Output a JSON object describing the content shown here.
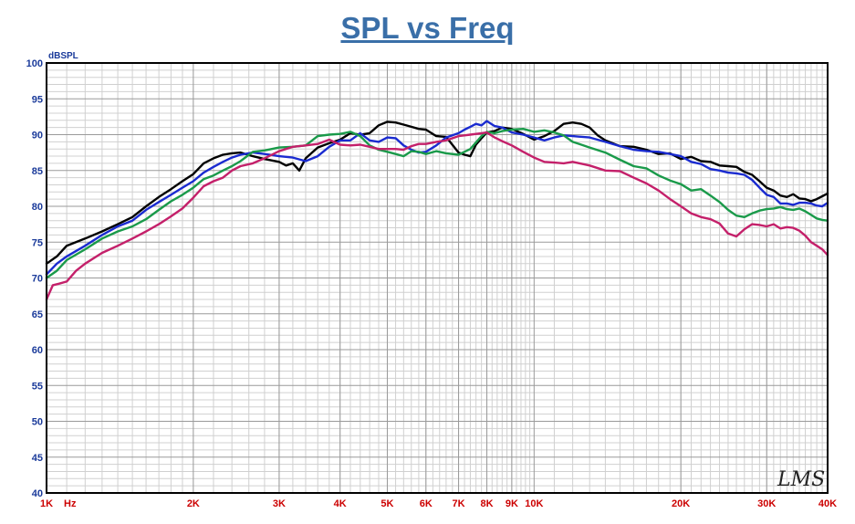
{
  "chart_data": {
    "type": "line",
    "title": "SPL vs Freq",
    "ylabel": "dBSPL",
    "xlabel_unit": "Hz",
    "x_scale": "log",
    "xlim": [
      1000,
      40000
    ],
    "ylim": [
      40,
      100
    ],
    "grid": true,
    "x_tick_labels": [
      {
        "value": 1000,
        "label": "1K"
      },
      {
        "value": 2000,
        "label": "2K"
      },
      {
        "value": 3000,
        "label": "3K"
      },
      {
        "value": 4000,
        "label": "4K"
      },
      {
        "value": 5000,
        "label": "5K"
      },
      {
        "value": 6000,
        "label": "6K"
      },
      {
        "value": 7000,
        "label": "7K"
      },
      {
        "value": 8000,
        "label": "8K"
      },
      {
        "value": 9000,
        "label": "9K"
      },
      {
        "value": 10000,
        "label": "10K"
      },
      {
        "value": 20000,
        "label": "20K"
      },
      {
        "value": 30000,
        "label": "30K"
      },
      {
        "value": 40000,
        "label": "40K"
      }
    ],
    "y_ticks": [
      40,
      45,
      50,
      55,
      60,
      65,
      70,
      75,
      80,
      85,
      90,
      95,
      100
    ],
    "watermark": "LMS",
    "colors": {
      "title": "#3a6fa8",
      "y_tick_labels": "#1a3a9a",
      "x_tick_labels": "#cc0000",
      "grid_major": "#9a9a9a",
      "grid_minor": "#d0d0d0",
      "frame": "#000000"
    },
    "series": [
      {
        "color": "#000000",
        "x": [
          1000,
          1050,
          1100,
          1200,
          1300,
          1400,
          1500,
          1600,
          1700,
          1800,
          1900,
          2000,
          2100,
          2200,
          2300,
          2400,
          2500,
          2650,
          2800,
          3000,
          3100,
          3200,
          3300,
          3400,
          3600,
          3800,
          4000,
          4200,
          4400,
          4600,
          4800,
          5000,
          5200,
          5400,
          5600,
          5800,
          6000,
          6300,
          6600,
          7000,
          7200,
          7400,
          7600,
          7800,
          8000,
          8300,
          8600,
          9000,
          9500,
          10000,
          10500,
          11000,
          11500,
          12000,
          12500,
          13000,
          13500,
          14000,
          15000,
          16000,
          17000,
          18000,
          19000,
          20000,
          21000,
          22000,
          23000,
          24000,
          25000,
          26000,
          27000,
          28000,
          29000,
          30000,
          31000,
          32000,
          33000,
          34000,
          35000,
          36000,
          37000,
          38000,
          39000,
          40000
        ],
        "y": [
          72,
          73,
          74.5,
          75.5,
          76.5,
          77.5,
          78.5,
          80,
          81.3,
          82.4,
          83.5,
          84.5,
          86,
          86.7,
          87.2,
          87.4,
          87.5,
          87,
          86.6,
          86.2,
          85.7,
          86,
          85,
          86.7,
          88.2,
          88.8,
          89.3,
          90.2,
          90,
          90.2,
          91.3,
          91.8,
          91.7,
          91.4,
          91.1,
          90.8,
          90.7,
          89.8,
          89.7,
          87.5,
          87.2,
          87,
          88.6,
          89.5,
          90.3,
          90.5,
          91,
          90.8,
          90.1,
          89.3,
          89.8,
          90.5,
          91.5,
          91.7,
          91.5,
          91,
          89.9,
          89.2,
          88.4,
          88.3,
          87.9,
          87.3,
          87.4,
          86.6,
          86.9,
          86.3,
          86.2,
          85.7,
          85.6,
          85.5,
          84.8,
          84.4,
          83.5,
          82.6,
          82.2,
          81.5,
          81.3,
          81.7,
          81.1,
          81.0,
          80.7,
          81.0,
          81.4,
          81.8
        ]
      },
      {
        "color": "#1a2bd0",
        "x": [
          1000,
          1050,
          1100,
          1200,
          1300,
          1400,
          1500,
          1600,
          1700,
          1800,
          1900,
          2000,
          2100,
          2200,
          2300,
          2400,
          2500,
          2650,
          2800,
          3000,
          3200,
          3400,
          3600,
          3800,
          4000,
          4200,
          4400,
          4600,
          4800,
          5000,
          5200,
          5400,
          5600,
          5800,
          6000,
          6300,
          6600,
          7000,
          7200,
          7400,
          7600,
          7800,
          8000,
          8300,
          8600,
          9000,
          9500,
          10000,
          10500,
          11000,
          11500,
          12000,
          13000,
          14000,
          15000,
          16000,
          17000,
          18000,
          19000,
          20000,
          21000,
          22000,
          23000,
          24000,
          25000,
          26000,
          27000,
          28000,
          29000,
          30000,
          31000,
          32000,
          33000,
          34000,
          35000,
          36000,
          37000,
          38000,
          39000,
          40000
        ],
        "y": [
          70.5,
          72,
          73,
          74.5,
          76,
          77.2,
          78,
          79.5,
          80.6,
          81.6,
          82.6,
          83.5,
          84.7,
          85.5,
          86.2,
          86.8,
          87.2,
          87.5,
          87.3,
          87,
          86.8,
          86.3,
          87,
          88.3,
          89.2,
          89.2,
          90.2,
          89.2,
          89,
          89.6,
          89.5,
          88.5,
          87.9,
          87.5,
          87.6,
          88.5,
          89.6,
          90.2,
          90.7,
          91.1,
          91.5,
          91.3,
          91.9,
          91.2,
          91,
          90.3,
          90,
          89.6,
          89.2,
          89.6,
          89.9,
          89.8,
          89.6,
          89.0,
          88.4,
          87.9,
          87.7,
          87.6,
          87.3,
          87.0,
          86.2,
          85.9,
          85.2,
          85.0,
          84.7,
          84.6,
          84.4,
          83.7,
          82.6,
          81.6,
          81.3,
          80.4,
          80.4,
          80.2,
          80.5,
          80.5,
          80.4,
          80.1,
          80.0,
          80.5
        ]
      },
      {
        "color": "#1a9a4a",
        "x": [
          1000,
          1050,
          1100,
          1200,
          1300,
          1400,
          1500,
          1600,
          1700,
          1800,
          1900,
          2000,
          2100,
          2200,
          2300,
          2400,
          2500,
          2650,
          2800,
          3000,
          3200,
          3400,
          3600,
          3800,
          4000,
          4200,
          4400,
          4600,
          4800,
          5000,
          5200,
          5400,
          5600,
          5800,
          6000,
          6300,
          6600,
          7000,
          7400,
          7800,
          8000,
          8300,
          8600,
          9000,
          9500,
          10000,
          10500,
          11000,
          11500,
          12000,
          12500,
          13000,
          14000,
          15000,
          16000,
          17000,
          18000,
          19000,
          20000,
          21000,
          22000,
          23000,
          24000,
          25000,
          26000,
          27000,
          28000,
          29000,
          30000,
          31000,
          32000,
          33000,
          34000,
          35000,
          36000,
          37000,
          38000,
          39000,
          40000
        ],
        "y": [
          70,
          71,
          72.5,
          74,
          75.5,
          76.5,
          77.2,
          78.2,
          79.5,
          80.7,
          81.6,
          82.6,
          83.8,
          84.3,
          85,
          85.6,
          86.3,
          87.6,
          87.8,
          88.2,
          88.3,
          88.5,
          89.8,
          90,
          90.1,
          90.4,
          89.8,
          88.5,
          87.9,
          87.6,
          87.3,
          87,
          87.7,
          87.6,
          87.3,
          87.7,
          87.4,
          87.2,
          88,
          89.8,
          90.4,
          90.2,
          90.5,
          90.7,
          90.8,
          90.4,
          90.6,
          90.3,
          89.9,
          89.0,
          88.6,
          88.2,
          87.5,
          86.5,
          85.6,
          85.3,
          84.3,
          83.6,
          83.1,
          82.2,
          82.4,
          81.5,
          80.6,
          79.5,
          78.7,
          78.5,
          79.0,
          79.4,
          79.6,
          79.7,
          79.9,
          79.6,
          79.5,
          79.7,
          79.3,
          78.8,
          78.3,
          78.1,
          78.0
        ]
      },
      {
        "color": "#c4206a",
        "x": [
          1000,
          1030,
          1060,
          1100,
          1150,
          1200,
          1300,
          1400,
          1500,
          1600,
          1700,
          1800,
          1900,
          2000,
          2100,
          2200,
          2300,
          2400,
          2500,
          2650,
          2800,
          3000,
          3200,
          3400,
          3600,
          3800,
          4000,
          4200,
          4400,
          4600,
          4800,
          5000,
          5200,
          5400,
          5600,
          5800,
          6000,
          6300,
          6600,
          7000,
          7400,
          7800,
          8000,
          8300,
          8600,
          9000,
          9500,
          10000,
          10500,
          11000,
          11500,
          12000,
          13000,
          14000,
          15000,
          16000,
          17000,
          18000,
          19000,
          20000,
          21000,
          22000,
          23000,
          24000,
          25000,
          26000,
          27000,
          28000,
          29000,
          30000,
          31000,
          32000,
          33000,
          34000,
          35000,
          36000,
          37000,
          38000,
          39000,
          40000
        ],
        "y": [
          67,
          69,
          69.2,
          69.5,
          71,
          72,
          73.5,
          74.5,
          75.5,
          76.5,
          77.5,
          78.6,
          79.7,
          81.2,
          82.8,
          83.5,
          84,
          85,
          85.6,
          86,
          86.7,
          87.7,
          88.3,
          88.5,
          88.7,
          89.3,
          88.6,
          88.5,
          88.6,
          88.3,
          88,
          88,
          88,
          87.9,
          88.4,
          88.7,
          88.7,
          89,
          89.2,
          89.8,
          90,
          90.2,
          90.3,
          89.6,
          89.1,
          88.5,
          87.6,
          86.8,
          86.2,
          86.1,
          86.0,
          86.2,
          85.7,
          85.0,
          84.9,
          84.0,
          83.2,
          82.2,
          81.0,
          80.0,
          79.0,
          78.5,
          78.2,
          77.6,
          76.2,
          75.8,
          76.8,
          77.5,
          77.4,
          77.2,
          77.5,
          76.9,
          77.1,
          77.0,
          76.6,
          75.9,
          75.0,
          74.5,
          74.0,
          73.2
        ]
      }
    ]
  }
}
